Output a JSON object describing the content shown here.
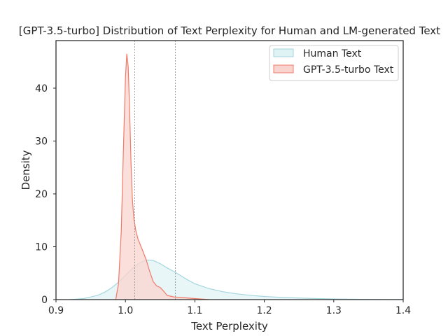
{
  "chart_data": {
    "type": "area",
    "title": "[GPT-3.5-turbo] Distribution of Text Perplexity for Human and LM-generated Text",
    "xlabel": "Text Perplexity",
    "ylabel": "Density",
    "xlim": [
      0.9,
      1.4
    ],
    "ylim": [
      0,
      49
    ],
    "xticks": [
      0.9,
      1.0,
      1.1,
      1.2,
      1.3,
      1.4
    ],
    "xtick_labels": [
      "0.9",
      "1.0",
      "1.1",
      "1.2",
      "1.3",
      "1.4"
    ],
    "yticks": [
      0,
      10,
      20,
      30,
      40
    ],
    "ytick_labels": [
      "0",
      "10",
      "20",
      "30",
      "40"
    ],
    "grid": false,
    "legend_position": "top-right",
    "vlines": [
      1.0135,
      1.072
    ],
    "series": [
      {
        "name": "Human Text",
        "fill": "#dff2f4",
        "stroke": "#a6d6de",
        "x": [
          0.92,
          0.94,
          0.96,
          0.97,
          0.98,
          0.99,
          1.0,
          1.01,
          1.02,
          1.03,
          1.04,
          1.05,
          1.06,
          1.07,
          1.08,
          1.09,
          1.1,
          1.12,
          1.14,
          1.16,
          1.18,
          1.2,
          1.22,
          1.25,
          1.28,
          1.31,
          1.34,
          1.37,
          1.4
        ],
        "y": [
          0.0,
          0.2,
          0.8,
          1.4,
          2.2,
          3.3,
          4.6,
          5.9,
          6.9,
          7.5,
          7.4,
          6.8,
          6.0,
          5.3,
          4.5,
          3.7,
          3.0,
          2.1,
          1.5,
          1.1,
          0.8,
          0.6,
          0.45,
          0.3,
          0.18,
          0.1,
          0.05,
          0.02,
          0.0
        ]
      },
      {
        "name": "GPT-3.5-turbo Text",
        "fill": "#f9d4cf",
        "stroke": "#f07a6a",
        "x": [
          0.986,
          0.99,
          0.994,
          0.997,
          1.0,
          1.002,
          1.004,
          1.006,
          1.008,
          1.01,
          1.012,
          1.015,
          1.018,
          1.021,
          1.025,
          1.03,
          1.035,
          1.04,
          1.045,
          1.05,
          1.055,
          1.06,
          1.07,
          1.08,
          1.09,
          1.1,
          1.11,
          1.12
        ],
        "y": [
          0.0,
          3.0,
          13.0,
          28.0,
          42.0,
          46.5,
          44.0,
          36.0,
          26.0,
          19.0,
          15.5,
          13.0,
          11.5,
          10.5,
          9.2,
          7.5,
          5.3,
          3.4,
          2.6,
          2.3,
          1.6,
          0.8,
          0.5,
          0.4,
          0.3,
          0.2,
          0.1,
          0.0
        ]
      }
    ]
  }
}
